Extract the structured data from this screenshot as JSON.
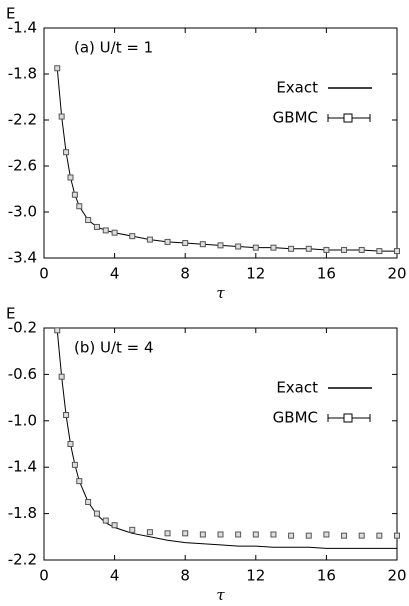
{
  "chart_data": [
    {
      "type": "line",
      "annotation": "(a) U/t = 1",
      "ylabel": "E",
      "xlabel": "τ",
      "x": [
        0.75,
        1,
        1.25,
        1.5,
        1.75,
        2,
        2.5,
        3,
        3.5,
        4,
        5,
        6,
        7,
        8,
        9,
        10,
        11,
        12,
        13,
        14,
        15,
        16,
        17,
        18,
        19,
        20
      ],
      "series": [
        {
          "name": "Exact",
          "color": "#000000",
          "marker": "none",
          "values": [
            -1.75,
            -2.17,
            -2.48,
            -2.7,
            -2.85,
            -2.95,
            -3.07,
            -3.13,
            -3.16,
            -3.18,
            -3.21,
            -3.24,
            -3.26,
            -3.27,
            -3.28,
            -3.29,
            -3.3,
            -3.31,
            -3.31,
            -3.32,
            -3.32,
            -3.33,
            -3.33,
            -3.33,
            -3.34,
            -3.34
          ]
        },
        {
          "name": "GBMC",
          "color": "#555555",
          "marker": "square",
          "values": [
            -1.75,
            -2.17,
            -2.48,
            -2.7,
            -2.85,
            -2.95,
            -3.07,
            -3.13,
            -3.16,
            -3.18,
            -3.21,
            -3.24,
            -3.26,
            -3.27,
            -3.28,
            -3.29,
            -3.3,
            -3.31,
            -3.31,
            -3.32,
            -3.32,
            -3.33,
            -3.33,
            -3.33,
            -3.34,
            -3.34
          ]
        }
      ],
      "xlim": [
        0,
        20
      ],
      "xticks": [
        0,
        4,
        8,
        12,
        16,
        20
      ],
      "ylim": [
        -3.4,
        -1.4
      ],
      "yticks": [
        -3.4,
        {
          "value": -3,
          "label": "-3.0"
        },
        -2.6,
        -2.2,
        -1.8,
        -1.4
      ],
      "legend": "upper right"
    },
    {
      "type": "line",
      "annotation": "(b) U/t = 4",
      "ylabel": "E",
      "xlabel": "τ",
      "x": [
        0.75,
        1,
        1.25,
        1.5,
        1.75,
        2,
        2.5,
        3,
        3.5,
        4,
        5,
        6,
        7,
        8,
        9,
        10,
        11,
        12,
        13,
        14,
        15,
        16,
        17,
        18,
        19,
        20
      ],
      "series": [
        {
          "name": "Exact",
          "color": "#000000",
          "marker": "none",
          "values": [
            -0.22,
            -0.62,
            -0.95,
            -1.2,
            -1.38,
            -1.52,
            -1.7,
            -1.81,
            -1.88,
            -1.92,
            -1.97,
            -2.0,
            -2.03,
            -2.05,
            -2.06,
            -2.07,
            -2.08,
            -2.08,
            -2.09,
            -2.09,
            -2.09,
            -2.1,
            -2.1,
            -2.1,
            -2.1,
            -2.1
          ]
        },
        {
          "name": "GBMC",
          "color": "#555555",
          "marker": "square",
          "values": [
            -0.22,
            -0.62,
            -0.95,
            -1.2,
            -1.38,
            -1.52,
            -1.7,
            -1.8,
            -1.86,
            -1.9,
            -1.94,
            -1.96,
            -1.97,
            -1.97,
            -1.98,
            -1.98,
            -1.98,
            -1.98,
            -1.98,
            -1.99,
            -1.99,
            -1.98,
            -1.99,
            -1.99,
            -1.99,
            -1.99
          ]
        }
      ],
      "xlim": [
        0,
        20
      ],
      "xticks": [
        0,
        4,
        8,
        12,
        16,
        20
      ],
      "ylim": [
        -2.2,
        -0.2
      ],
      "yticks": [
        -2.2,
        -1.8,
        -1.4,
        {
          "value": -1,
          "label": "-1.0"
        },
        -0.6,
        -0.2
      ],
      "legend": "upper right"
    }
  ]
}
